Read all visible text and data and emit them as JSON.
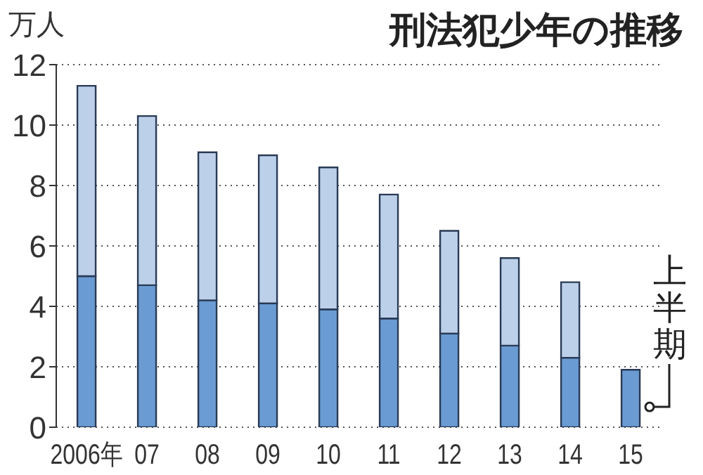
{
  "chart_data": {
    "type": "bar",
    "title": "刑法犯少年の推移",
    "ylabel": "万人",
    "categories": [
      "2006年",
      "07",
      "08",
      "09",
      "10",
      "11",
      "12",
      "13",
      "14",
      "15"
    ],
    "stacked": true,
    "series": [
      {
        "color": "#6a9bd3",
        "values": [
          5.0,
          4.7,
          4.2,
          4.1,
          3.9,
          3.6,
          3.1,
          2.7,
          2.3,
          1.9
        ]
      },
      {
        "color": "#bcd0ea",
        "values": [
          6.3,
          5.6,
          4.9,
          4.9,
          4.7,
          4.1,
          3.4,
          2.9,
          2.5,
          null
        ]
      }
    ],
    "ylim": [
      0,
      12
    ],
    "yticks": [
      0,
      2,
      4,
      6,
      8,
      10,
      12
    ],
    "grid": "y",
    "annotations": [
      {
        "text": "上半期",
        "x": "15",
        "y": 1.9
      }
    ]
  }
}
